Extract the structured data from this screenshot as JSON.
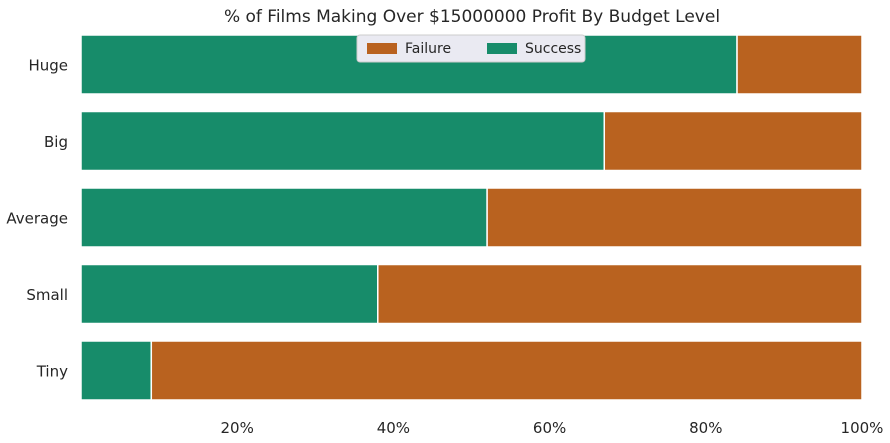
{
  "chart_data": {
    "type": "bar",
    "orientation": "horizontal",
    "stacked": true,
    "title": "% of Films Making Over $15000000 Profit By Budget Level",
    "xlabel": "",
    "ylabel": "",
    "categories": [
      "Huge",
      "Big",
      "Average",
      "Small",
      "Tiny"
    ],
    "series": [
      {
        "name": "Success",
        "color": "#178c6a",
        "values": [
          84,
          67,
          52,
          38,
          9
        ]
      },
      {
        "name": "Failure",
        "color": "#b9621f",
        "values": [
          16,
          33,
          48,
          62,
          91
        ]
      }
    ],
    "xlim": [
      0,
      100
    ],
    "xticks": [
      20,
      40,
      60,
      80,
      100
    ],
    "xtick_labels": [
      "20%",
      "40%",
      "60%",
      "80%",
      "100%"
    ],
    "legend": {
      "placement": "top-center",
      "entries": [
        {
          "label": "Failure",
          "color": "#b9621f"
        },
        {
          "label": "Success",
          "color": "#178c6a"
        }
      ]
    },
    "grid": false
  }
}
